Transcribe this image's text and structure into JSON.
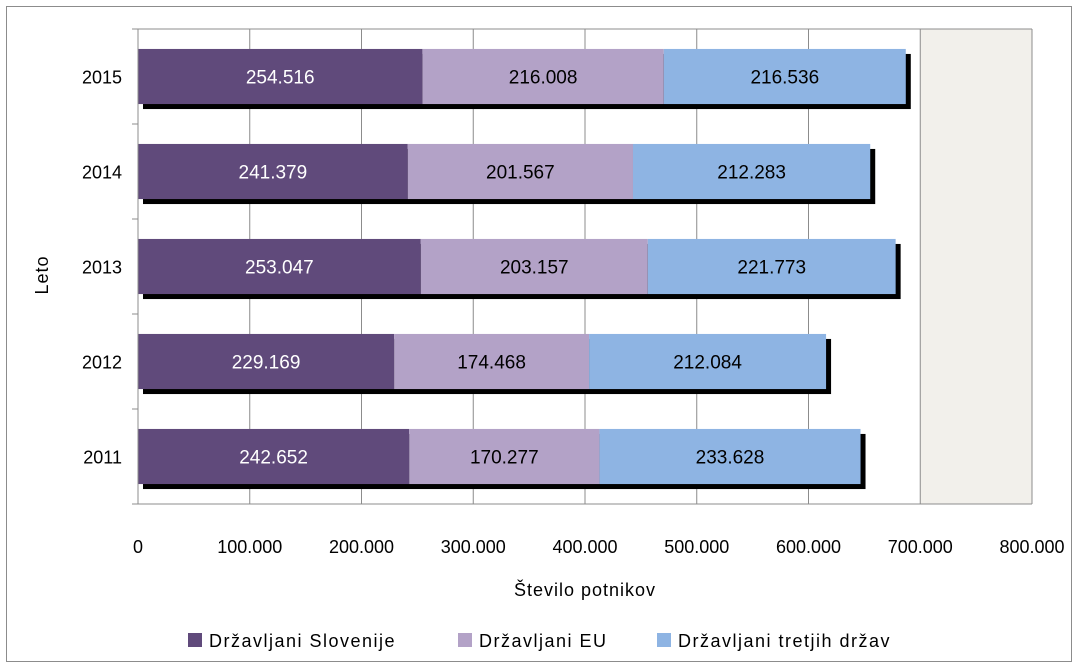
{
  "chart_data": {
    "type": "bar",
    "orientation": "horizontal",
    "stacked": true,
    "categories": [
      "2015",
      "2014",
      "2013",
      "2012",
      "2011"
    ],
    "series": [
      {
        "name": "Državljani Slovenije",
        "values": [
          254516,
          241379,
          253047,
          229169,
          242652
        ],
        "labels": [
          "254.516",
          "241.379",
          "253.047",
          "229.169",
          "242.652"
        ],
        "color": "#604a7b",
        "label_color": "#ffffff"
      },
      {
        "name": "Državljani EU",
        "values": [
          216008,
          201567,
          203157,
          174468,
          170277
        ],
        "labels": [
          "216.008",
          "201.567",
          "203.157",
          "174.468",
          "170.277"
        ],
        "color": "#b3a2c7",
        "label_color": "#000000"
      },
      {
        "name": "Državljani tretjih držav",
        "values": [
          216536,
          212283,
          221773,
          212084,
          233628
        ],
        "labels": [
          "216.536",
          "212.283",
          "221.773",
          "212.084",
          "233.628"
        ],
        "color": "#8eb4e3",
        "label_color": "#000000"
      }
    ],
    "xlabel": "Število potnikov",
    "ylabel": "Leto",
    "xlim": [
      0,
      800000
    ],
    "x_ticks": [
      0,
      100000,
      200000,
      300000,
      400000,
      500000,
      600000,
      700000,
      800000
    ],
    "x_tick_labels": [
      "0",
      "100.000",
      "200.000",
      "300.000",
      "400.000",
      "500.000",
      "600.000",
      "700.000",
      "800.000"
    ],
    "grid": true,
    "plot_background": "#f2f0eb",
    "legend_position": "bottom"
  }
}
